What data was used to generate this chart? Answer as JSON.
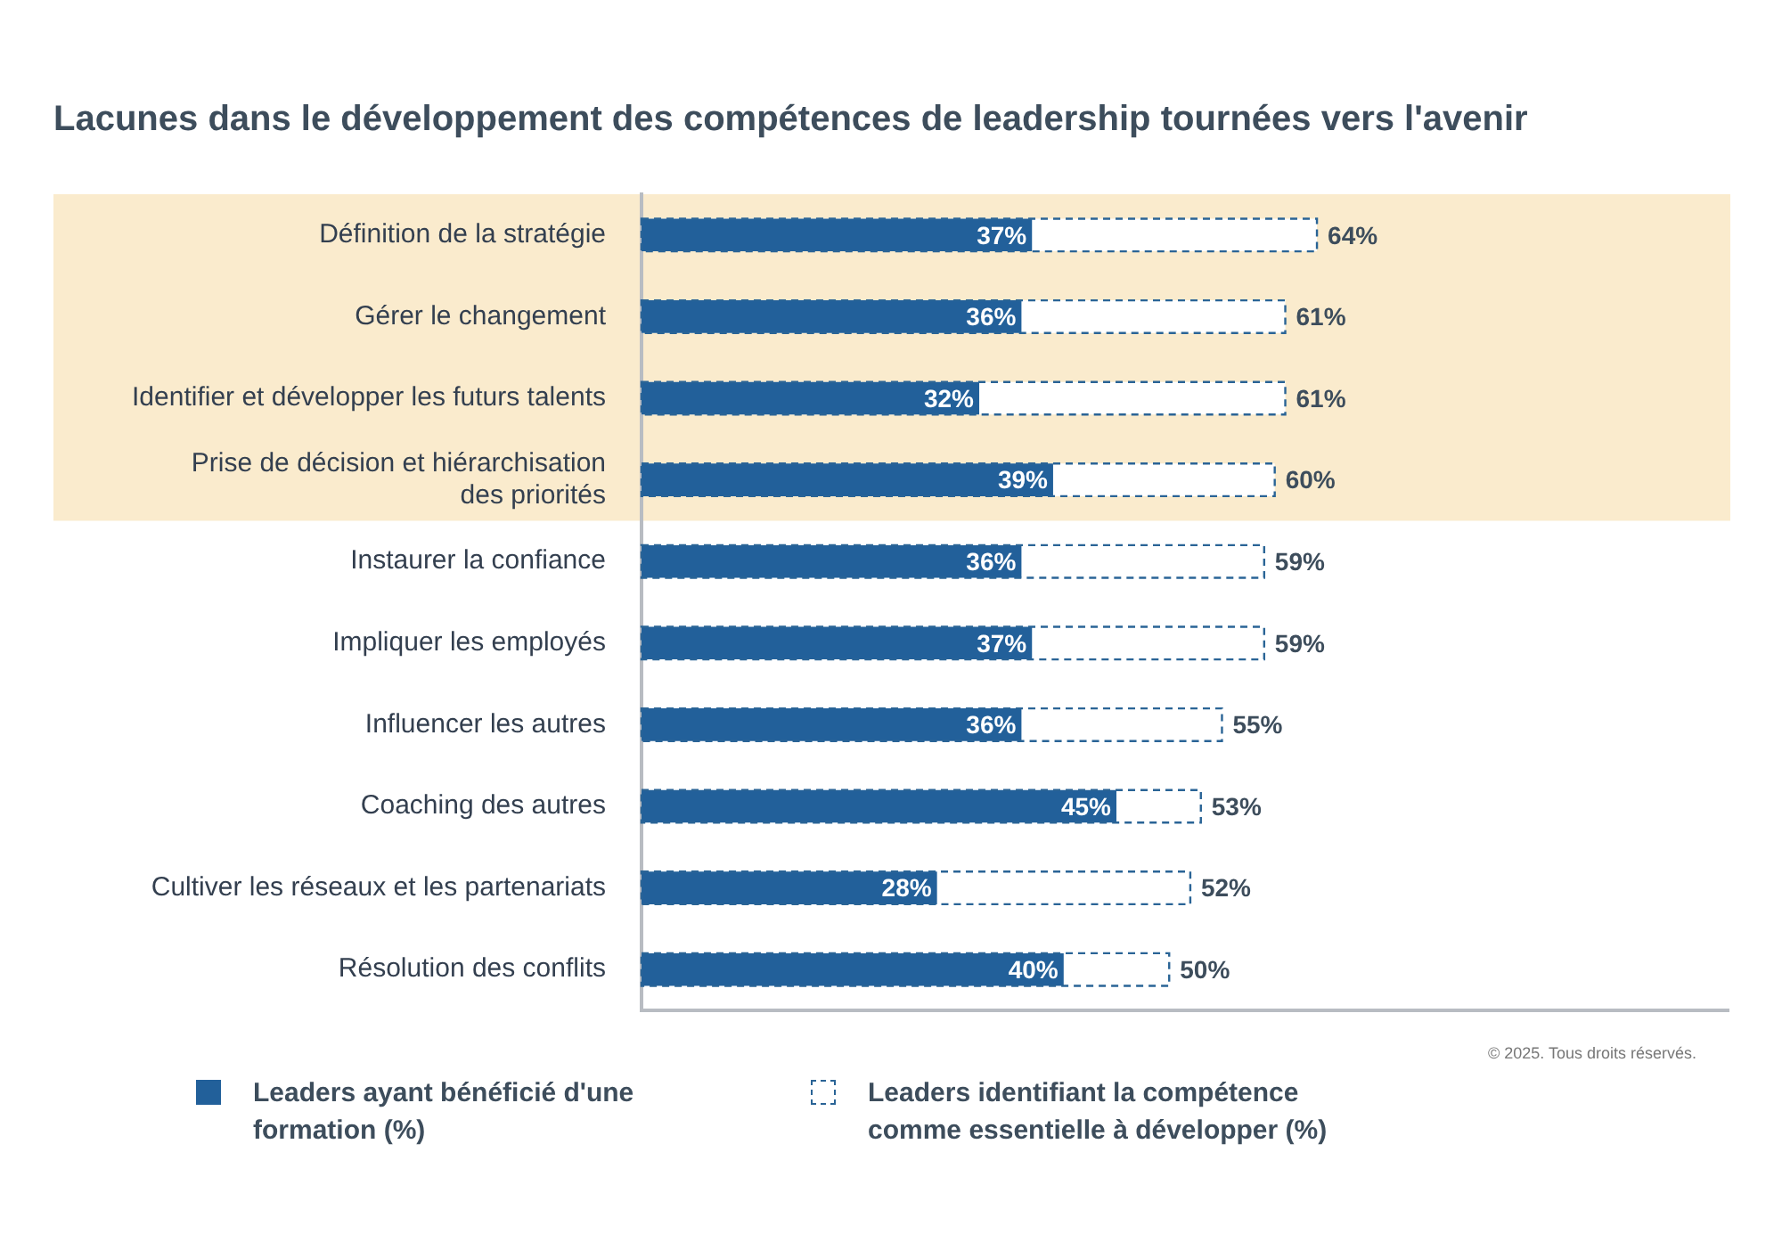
{
  "chart_data": {
    "type": "bar",
    "orientation": "horizontal",
    "title": "Lacunes dans le développement des compétences de leadership tournées vers l'avenir",
    "categories": [
      "Définition de la stratégie",
      "Gérer le changement",
      "Identifier et développer les futurs talents",
      "Prise de décision et hiérarchisation des priorités",
      "Instaurer la confiance",
      "Impliquer les employés",
      "Influencer les autres",
      "Coaching des autres",
      "Cultiver les réseaux et les partenariats",
      "Résolution des conflits"
    ],
    "series": [
      {
        "name": "Leaders identifiant la compétence comme essentielle à développer (%)",
        "color": "#2a6496",
        "line_style": "dashed",
        "values": [
          64,
          61,
          61,
          60,
          59,
          59,
          55,
          53,
          52,
          50
        ],
        "value_labels": [
          "64%",
          "61%",
          "61%",
          "60%",
          "59%",
          "59%",
          "55%",
          "53%",
          "52%",
          "50%"
        ]
      },
      {
        "name": "Leaders ayant bénéficié d'une formation (%)",
        "color": "#22609a",
        "line_style": "solid",
        "values": [
          37,
          36,
          32,
          39,
          36,
          37,
          36,
          45,
          28,
          40
        ],
        "value_labels": [
          "37%",
          "36%",
          "32%",
          "39%",
          "36%",
          "37%",
          "36%",
          "45%",
          "28%",
          "40%"
        ]
      }
    ],
    "xlim": [
      0,
      103
    ],
    "tick_labels": "y",
    "grid": false,
    "legend": "bottom",
    "bands": [
      {
        "axis": "y",
        "from": "Définition de la stratégie",
        "to": "Prise de décision et hiérarchisation des priorités",
        "color": "#faebcd"
      }
    ],
    "annotations": [
      "© 2025. Tous droits réservés."
    ]
  }
}
